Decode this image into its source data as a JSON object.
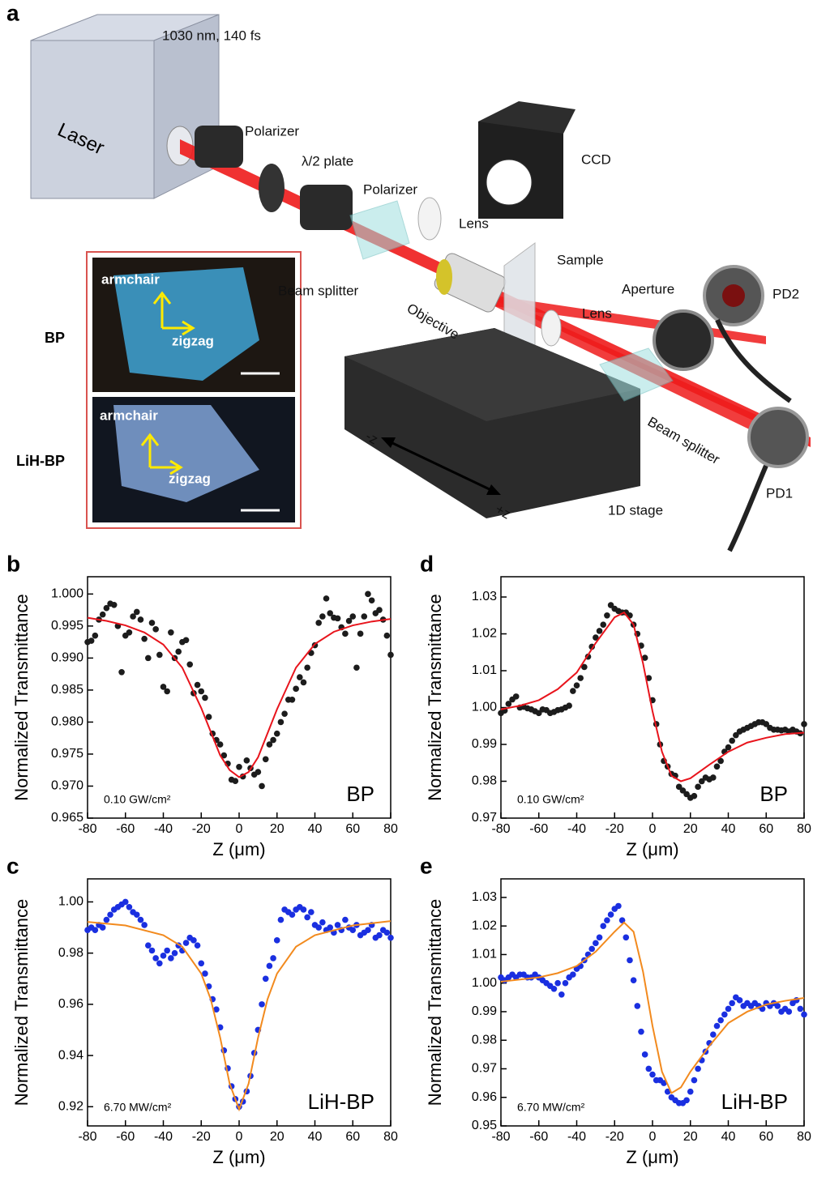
{
  "panel_a": {
    "panel": "a",
    "laser_spec": "1030 nm, 140 fs",
    "components": [
      "Laser",
      "Polarizer",
      "λ/2 plate",
      "Polarizer",
      "Beam splitter",
      "Lens",
      "CCD",
      "Sample",
      "Objective",
      "Lens",
      "Aperture",
      "PD2",
      "Beam splitter",
      "PD1",
      "1D stage",
      "-z",
      "+z"
    ],
    "inset": [
      {
        "sample": "BP",
        "armchair": "armchair",
        "zigzag": "zigzag"
      },
      {
        "sample": "LiH-BP",
        "armchair": "armchair",
        "zigzag": "zigzag"
      }
    ]
  },
  "chart_data": [
    {
      "type": "scatter",
      "panel": "b",
      "annotation": "0.10 GW/cm²",
      "sample": "BP",
      "xlabel": "Z (μm)",
      "ylabel": "Normalized Transmittance",
      "color": "#1c1c1c",
      "xlim": [
        -80,
        80
      ],
      "ylim": [
        0.965,
        1.0027
      ],
      "xticks": [
        -80,
        -60,
        -40,
        -20,
        0,
        20,
        40,
        60,
        80
      ],
      "yticks": [
        0.965,
        {
          "value": 0.97,
          "label": "0.970"
        },
        0.975,
        {
          "value": 0.98,
          "label": "0.980"
        },
        0.985,
        {
          "value": 0.99,
          "label": "0.990"
        },
        0.995,
        {
          "value": 1,
          "label": "1.000"
        }
      ],
      "x": [
        -80,
        -78,
        -76,
        -74,
        -72,
        -70,
        -68,
        -66,
        -64,
        -62,
        -60,
        -58,
        -56,
        -54,
        -52,
        -50,
        -48,
        -46,
        -44,
        -42,
        -40,
        -38,
        -36,
        -34,
        -32,
        -30,
        -28,
        -26,
        -24,
        -22,
        -20,
        -18,
        -16,
        -14,
        -12,
        -10,
        -8,
        -6,
        -4,
        -2,
        0,
        2,
        4,
        6,
        8,
        10,
        12,
        14,
        16,
        18,
        20,
        22,
        24,
        26,
        28,
        30,
        32,
        34,
        36,
        38,
        40,
        42,
        44,
        46,
        48,
        50,
        52,
        54,
        56,
        58,
        60,
        62,
        64,
        66,
        68,
        70,
        72,
        74,
        76,
        78,
        80
      ],
      "values": [
        0.9925,
        0.9927,
        0.9935,
        0.996,
        0.9968,
        0.9978,
        0.9985,
        0.9983,
        0.995,
        0.9878,
        0.9935,
        0.994,
        0.9965,
        0.9972,
        0.996,
        0.993,
        0.99,
        0.9955,
        0.9945,
        0.9905,
        0.9855,
        0.9848,
        0.994,
        0.99,
        0.991,
        0.9925,
        0.9928,
        0.989,
        0.9845,
        0.9858,
        0.9848,
        0.9838,
        0.9808,
        0.9782,
        0.9772,
        0.9765,
        0.9748,
        0.9735,
        0.971,
        0.9708,
        0.973,
        0.9715,
        0.974,
        0.9728,
        0.9718,
        0.9722,
        0.97,
        0.9742,
        0.9765,
        0.9772,
        0.9782,
        0.98,
        0.9813,
        0.9835,
        0.9835,
        0.9852,
        0.987,
        0.9862,
        0.9885,
        0.9908,
        0.992,
        0.9955,
        0.9965,
        0.9993,
        0.997,
        0.9963,
        0.9962,
        0.9948,
        0.9938,
        0.9958,
        0.9965,
        0.9885,
        0.9938,
        0.9965,
        1.0,
        0.999,
        0.997,
        0.9975,
        0.996,
        0.9935,
        0.9905
      ],
      "fit": {
        "color": "#e8141c",
        "x": [
          -80,
          -70,
          -60,
          -50,
          -40,
          -30,
          -20,
          -10,
          -5,
          0,
          5,
          10,
          20,
          30,
          40,
          50,
          60,
          70,
          80
        ],
        "values": [
          0.9963,
          0.9958,
          0.9951,
          0.994,
          0.9921,
          0.9885,
          0.9822,
          0.9748,
          0.9725,
          0.9714,
          0.9722,
          0.9745,
          0.982,
          0.9885,
          0.9922,
          0.9941,
          0.9951,
          0.9957,
          0.9961
        ]
      }
    },
    {
      "type": "scatter",
      "panel": "d",
      "annotation": "0.10 GW/cm²",
      "sample": "BP",
      "xlabel": "Z (μm)",
      "ylabel": "Normalized Transmittance",
      "color": "#1c1c1c",
      "xlim": [
        -80,
        80
      ],
      "ylim": [
        0.97,
        1.0355
      ],
      "xticks": [
        -80,
        -60,
        -40,
        -20,
        0,
        20,
        40,
        60,
        80
      ],
      "yticks": [
        0.97,
        0.98,
        0.99,
        {
          "value": 1,
          "label": "1.00"
        },
        1.01,
        1.02,
        1.03
      ],
      "x": [
        -80,
        -78,
        -76,
        -74,
        -72,
        -70,
        -68,
        -66,
        -64,
        -62,
        -60,
        -58,
        -56,
        -54,
        -52,
        -50,
        -48,
        -46,
        -44,
        -42,
        -40,
        -38,
        -36,
        -34,
        -32,
        -30,
        -28,
        -26,
        -24,
        -22,
        -20,
        -18,
        -16,
        -14,
        -12,
        -10,
        -8,
        -6,
        -4,
        -2,
        0,
        2,
        4,
        6,
        8,
        10,
        12,
        14,
        16,
        18,
        20,
        22,
        24,
        26,
        28,
        30,
        32,
        34,
        36,
        38,
        40,
        42,
        44,
        46,
        48,
        50,
        52,
        54,
        56,
        58,
        60,
        62,
        64,
        66,
        68,
        70,
        72,
        74,
        76,
        78,
        80
      ],
      "values": [
        0.9985,
        0.9992,
        1.001,
        1.0022,
        1.003,
        1.0,
        1.0002,
        0.9998,
        0.9995,
        0.999,
        0.9985,
        0.9995,
        0.9993,
        0.9985,
        0.9988,
        0.9993,
        0.9995,
        1.0,
        1.0005,
        1.0045,
        1.006,
        1.008,
        1.011,
        1.0138,
        1.0165,
        1.019,
        1.0208,
        1.0225,
        1.025,
        1.0278,
        1.0268,
        1.0262,
        1.0258,
        1.0258,
        1.025,
        1.0225,
        1.02,
        1.0168,
        1.0135,
        1.008,
        1.002,
        0.9955,
        0.99,
        0.9855,
        0.984,
        0.982,
        0.9815,
        0.9785,
        0.9775,
        0.9765,
        0.9755,
        0.976,
        0.9785,
        0.98,
        0.981,
        0.9805,
        0.981,
        0.984,
        0.9855,
        0.988,
        0.9892,
        0.991,
        0.9925,
        0.9935,
        0.994,
        0.9945,
        0.995,
        0.9955,
        0.996,
        0.996,
        0.9955,
        0.9945,
        0.994,
        0.994,
        0.9938,
        0.994,
        0.9935,
        0.994,
        0.9935,
        0.993,
        0.9955
      ],
      "fit": {
        "color": "#e8141c",
        "x": [
          -80,
          -70,
          -60,
          -50,
          -40,
          -30,
          -20,
          -15,
          -10,
          -5,
          0,
          5,
          10,
          15,
          20,
          30,
          40,
          50,
          60,
          70,
          80
        ],
        "values": [
          0.9995,
          1.0005,
          1.002,
          1.005,
          1.0095,
          1.0175,
          1.0245,
          1.0258,
          1.0225,
          1.012,
          0.999,
          0.988,
          0.9815,
          0.98,
          0.9808,
          0.9845,
          0.988,
          0.9905,
          0.9918,
          0.9928,
          0.9932
        ]
      }
    },
    {
      "type": "scatter",
      "panel": "c",
      "annotation": "6.70 MW/cm²",
      "sample": "LiH-BP",
      "xlabel": "Z (μm)",
      "ylabel": "Normalized Transmittance",
      "color": "#1a2fe0",
      "xlim": [
        -80,
        80
      ],
      "ylim": [
        0.9125,
        1.009
      ],
      "xticks": [
        -80,
        -60,
        -40,
        -20,
        0,
        20,
        40,
        60,
        80
      ],
      "yticks": [
        0.92,
        0.94,
        0.96,
        0.98,
        {
          "value": 1,
          "label": "1.00"
        }
      ],
      "x": [
        -80,
        -78,
        -76,
        -74,
        -72,
        -70,
        -68,
        -66,
        -64,
        -62,
        -60,
        -58,
        -56,
        -54,
        -52,
        -50,
        -48,
        -46,
        -44,
        -42,
        -40,
        -38,
        -36,
        -34,
        -32,
        -30,
        -28,
        -26,
        -24,
        -22,
        -20,
        -18,
        -16,
        -14,
        -12,
        -10,
        -8,
        -6,
        -4,
        -2,
        0,
        2,
        4,
        6,
        8,
        10,
        12,
        14,
        16,
        18,
        20,
        22,
        24,
        26,
        28,
        30,
        32,
        34,
        36,
        38,
        40,
        42,
        44,
        46,
        48,
        50,
        52,
        54,
        56,
        58,
        60,
        62,
        64,
        66,
        68,
        70,
        72,
        74,
        76,
        78,
        80
      ],
      "values": [
        0.989,
        0.99,
        0.989,
        0.991,
        0.99,
        0.993,
        0.995,
        0.997,
        0.998,
        0.999,
        1.0,
        0.998,
        0.996,
        0.995,
        0.993,
        0.991,
        0.983,
        0.981,
        0.978,
        0.976,
        0.979,
        0.981,
        0.978,
        0.98,
        0.983,
        0.981,
        0.984,
        0.986,
        0.985,
        0.983,
        0.976,
        0.972,
        0.967,
        0.962,
        0.958,
        0.951,
        0.942,
        0.935,
        0.928,
        0.923,
        0.92,
        0.922,
        0.926,
        0.932,
        0.941,
        0.95,
        0.96,
        0.97,
        0.975,
        0.978,
        0.985,
        0.993,
        0.997,
        0.996,
        0.995,
        0.997,
        0.998,
        0.997,
        0.994,
        0.996,
        0.991,
        0.99,
        0.992,
        0.989,
        0.99,
        0.988,
        0.991,
        0.989,
        0.993,
        0.99,
        0.989,
        0.991,
        0.987,
        0.988,
        0.989,
        0.991,
        0.986,
        0.987,
        0.989,
        0.988,
        0.986
      ],
      "fit": {
        "color": "#f28a1e",
        "x": [
          -80,
          -60,
          -40,
          -30,
          -20,
          -15,
          -10,
          -5,
          0,
          5,
          10,
          15,
          20,
          30,
          40,
          60,
          80
        ],
        "values": [
          0.9922,
          0.9908,
          0.987,
          0.9825,
          0.972,
          0.962,
          0.947,
          0.929,
          0.919,
          0.929,
          0.947,
          0.962,
          0.972,
          0.9825,
          0.987,
          0.9908,
          0.9925
        ]
      }
    },
    {
      "type": "scatter",
      "panel": "e",
      "annotation": "6.70 MW/cm²",
      "sample": "LiH-BP",
      "xlabel": "Z (μm)",
      "ylabel": "Normalized Transmittance",
      "color": "#1a2fe0",
      "xlim": [
        -80,
        80
      ],
      "ylim": [
        0.95,
        1.0365
      ],
      "xticks": [
        -80,
        -60,
        -40,
        -20,
        0,
        20,
        40,
        60,
        80
      ],
      "yticks": [
        0.95,
        0.96,
        0.97,
        0.98,
        0.99,
        {
          "value": 1,
          "label": "1.00"
        },
        1.01,
        1.02,
        1.03
      ],
      "x": [
        -80,
        -78,
        -76,
        -74,
        -72,
        -70,
        -68,
        -66,
        -64,
        -62,
        -60,
        -58,
        -56,
        -54,
        -52,
        -50,
        -48,
        -46,
        -44,
        -42,
        -40,
        -38,
        -36,
        -34,
        -32,
        -30,
        -28,
        -26,
        -24,
        -22,
        -20,
        -18,
        -16,
        -14,
        -12,
        -10,
        -8,
        -6,
        -4,
        -2,
        0,
        2,
        4,
        6,
        8,
        10,
        12,
        14,
        16,
        18,
        20,
        22,
        24,
        26,
        28,
        30,
        32,
        34,
        36,
        38,
        40,
        42,
        44,
        46,
        48,
        50,
        52,
        54,
        56,
        58,
        60,
        62,
        64,
        66,
        68,
        70,
        72,
        74,
        76,
        78,
        80
      ],
      "values": [
        1.002,
        1.001,
        1.002,
        1.003,
        1.002,
        1.003,
        1.003,
        1.002,
        1.002,
        1.003,
        1.002,
        1.001,
        1.0,
        0.999,
        0.998,
        1.0,
        0.996,
        1.0,
        1.002,
        1.003,
        1.005,
        1.006,
        1.008,
        1.01,
        1.012,
        1.014,
        1.016,
        1.02,
        1.022,
        1.024,
        1.026,
        1.027,
        1.022,
        1.016,
        1.008,
        1.001,
        0.992,
        0.983,
        0.975,
        0.97,
        0.968,
        0.966,
        0.966,
        0.965,
        0.962,
        0.96,
        0.959,
        0.958,
        0.958,
        0.959,
        0.962,
        0.966,
        0.97,
        0.973,
        0.976,
        0.979,
        0.982,
        0.985,
        0.987,
        0.989,
        0.991,
        0.993,
        0.995,
        0.994,
        0.992,
        0.993,
        0.992,
        0.993,
        0.992,
        0.991,
        0.993,
        0.992,
        0.993,
        0.992,
        0.99,
        0.991,
        0.99,
        0.993,
        0.994,
        0.991,
        0.989
      ],
      "fit": {
        "color": "#f28a1e",
        "x": [
          -80,
          -60,
          -50,
          -40,
          -30,
          -20,
          -15,
          -10,
          -5,
          0,
          5,
          10,
          15,
          20,
          30,
          40,
          50,
          60,
          70,
          80
        ],
        "values": [
          1.0005,
          1.002,
          1.0035,
          1.006,
          1.011,
          1.018,
          1.0212,
          1.018,
          1.004,
          0.985,
          0.969,
          0.9615,
          0.9635,
          0.969,
          0.978,
          0.986,
          0.99,
          0.9925,
          0.9938,
          0.9948
        ]
      }
    }
  ]
}
